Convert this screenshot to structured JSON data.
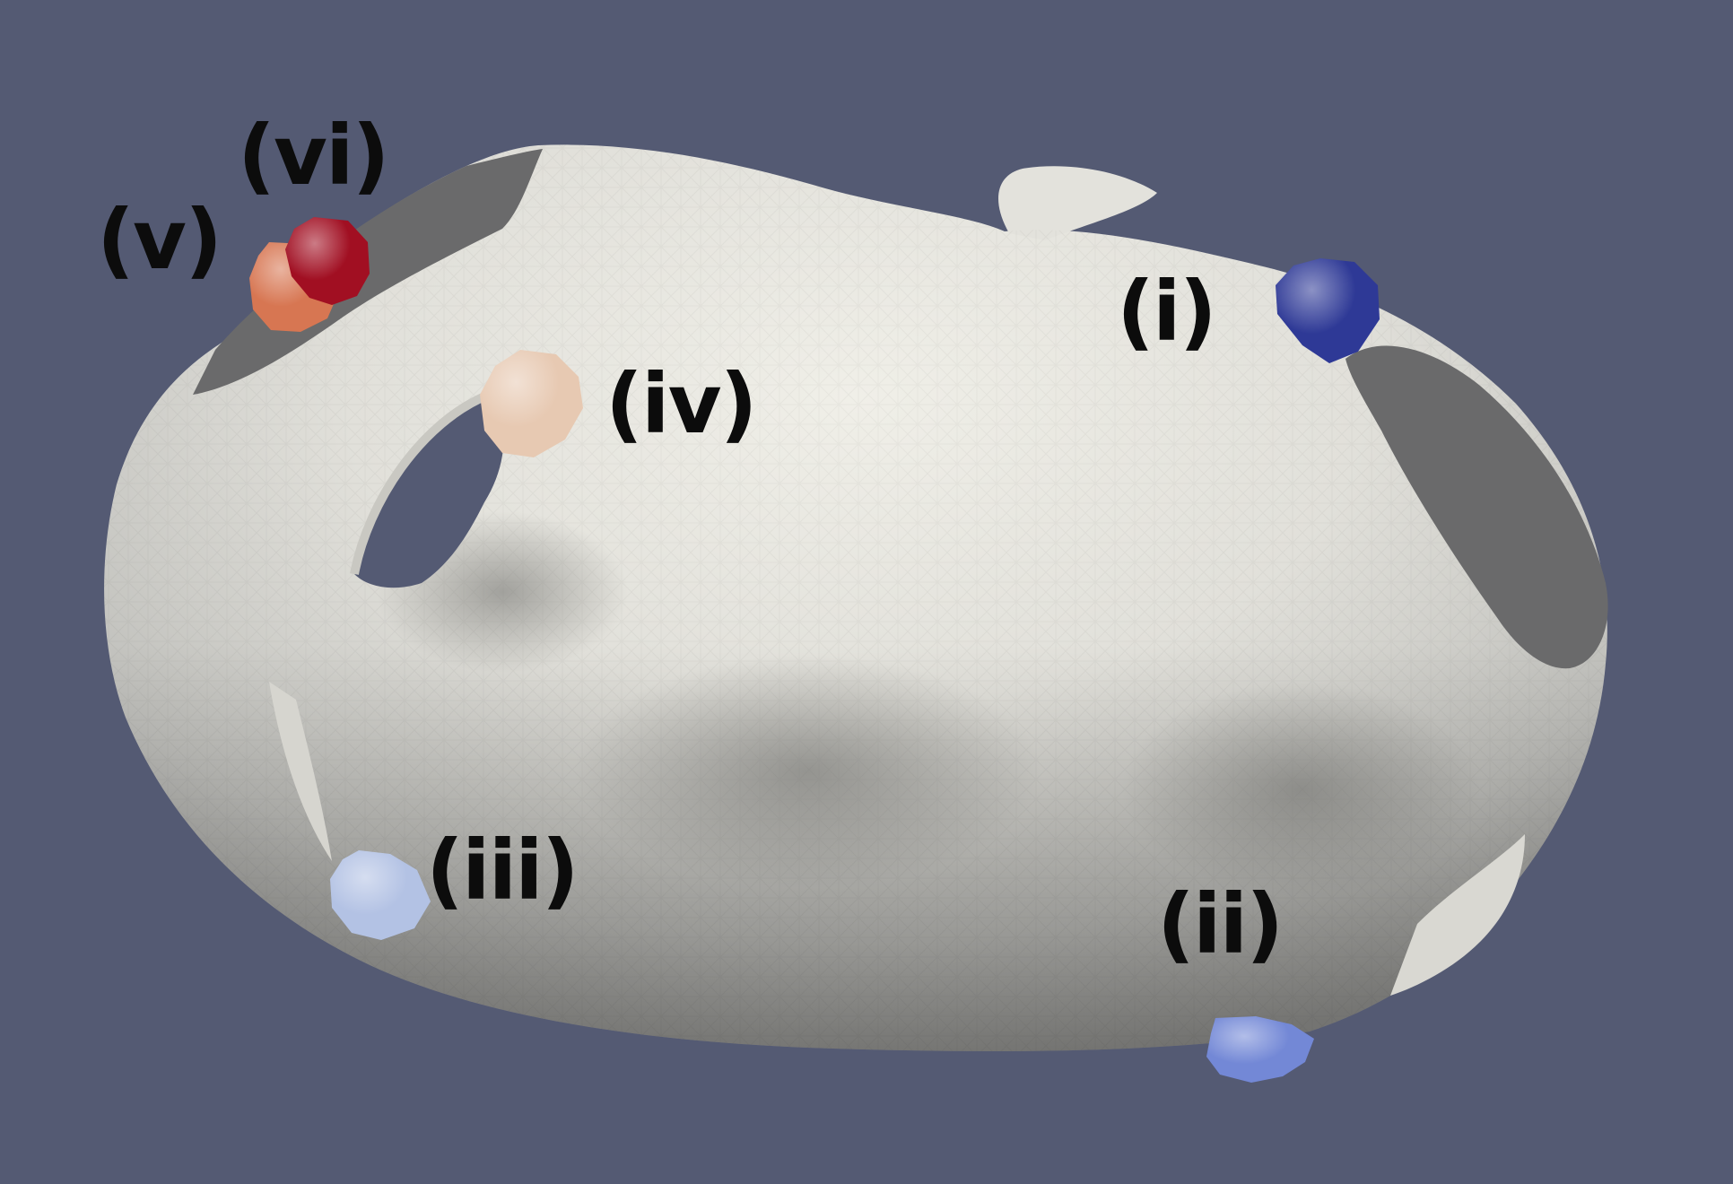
{
  "scene": {
    "background_color": "#545a73",
    "surface_color": "#e8e7e0",
    "surface_shadow_color": "#8c8c89",
    "cut_region_color": "#6a6a6b"
  },
  "markers": [
    {
      "id": "i",
      "label": "(i)",
      "color": "#2e3996"
    },
    {
      "id": "ii",
      "label": "(ii)",
      "color": "#7388d6"
    },
    {
      "id": "iii",
      "label": "(iii)",
      "color": "#b3c2e4"
    },
    {
      "id": "iv",
      "label": "(iv)",
      "color": "#e7c9b2"
    },
    {
      "id": "v",
      "label": "(v)",
      "color": "#d77652"
    },
    {
      "id": "vi",
      "label": "(vi)",
      "color": "#a10f22"
    }
  ]
}
